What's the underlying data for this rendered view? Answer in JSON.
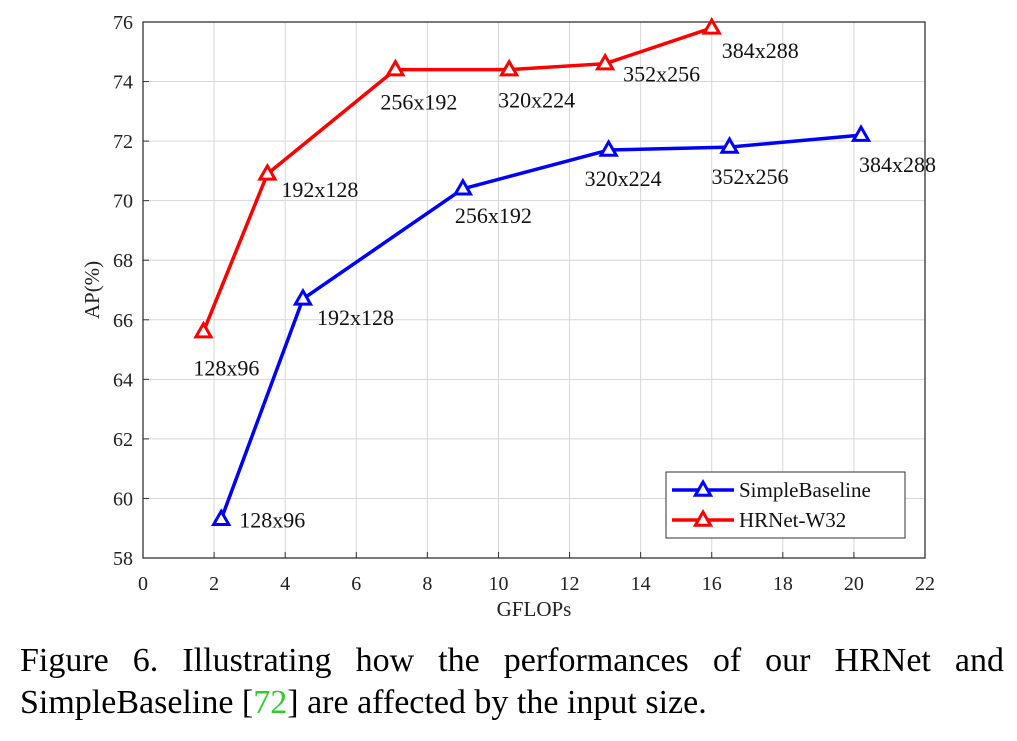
{
  "chart_data": {
    "type": "line",
    "xlabel": "GFLOPs",
    "ylabel": "AP(%)",
    "xlim": [
      0,
      22
    ],
    "ylim": [
      58,
      76
    ],
    "xticks": [
      0,
      2,
      4,
      6,
      8,
      10,
      12,
      14,
      16,
      18,
      20,
      22
    ],
    "yticks": [
      58,
      60,
      62,
      64,
      66,
      68,
      70,
      72,
      74,
      76
    ],
    "grid": true,
    "legend_position": "bottom-right",
    "series": [
      {
        "name": "SimpleBaseline",
        "color": "#0000ff",
        "marker": "triangle",
        "points": [
          {
            "x": 2.2,
            "y": 59.3,
            "label": "128x96"
          },
          {
            "x": 4.5,
            "y": 66.7,
            "label": "192x128"
          },
          {
            "x": 9.0,
            "y": 70.4,
            "label": "256x192"
          },
          {
            "x": 13.1,
            "y": 71.7,
            "label": "320x224"
          },
          {
            "x": 16.5,
            "y": 71.8,
            "label": "352x256"
          },
          {
            "x": 20.2,
            "y": 72.2,
            "label": "384x288"
          }
        ]
      },
      {
        "name": "HRNet-W32",
        "color": "#ff0000",
        "marker": "triangle",
        "points": [
          {
            "x": 1.7,
            "y": 65.6,
            "label": "128x96"
          },
          {
            "x": 3.5,
            "y": 70.9,
            "label": "192x128"
          },
          {
            "x": 7.1,
            "y": 74.4,
            "label": "256x192"
          },
          {
            "x": 10.3,
            "y": 74.4,
            "label": "320x224"
          },
          {
            "x": 13.0,
            "y": 74.6,
            "label": "352x256"
          },
          {
            "x": 16.0,
            "y": 75.8,
            "label": "384x288"
          }
        ]
      }
    ]
  },
  "caption": {
    "prefix": "Figure 6. Illustrating how the performances of our HRNet and SimpleBaseline [",
    "ref": "72",
    "suffix": "] are affected by the input size."
  }
}
